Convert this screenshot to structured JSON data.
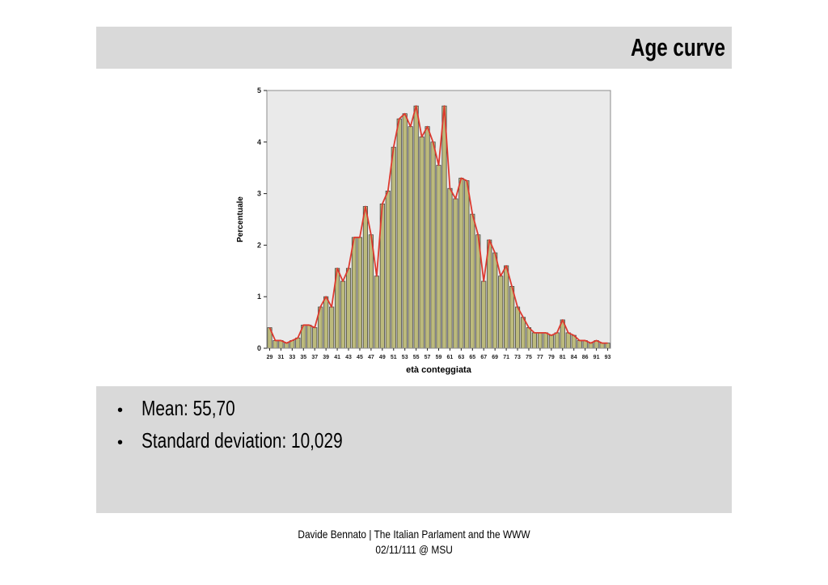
{
  "slide": {
    "title": "Age curve",
    "bullet_char": "•",
    "bullets": [
      "Mean: 55,70",
      "Standard deviation: 10,029"
    ],
    "footer_line1": "Davide Bennato | The Italian Parlament and the WWW",
    "footer_line2": "02/11/111 @ MSU",
    "colors": {
      "panel_bg": "#d9d9d9",
      "text": "#000000"
    }
  },
  "chart_data": {
    "type": "bar",
    "title": "",
    "xlabel": "età conteggiata",
    "ylabel": "Percentuale",
    "ylim": [
      0,
      5
    ],
    "yticks": [
      0,
      1,
      2,
      3,
      4,
      5
    ],
    "grid": false,
    "legend": null,
    "overlay": "line",
    "x_tick_every": 2,
    "x": [
      29,
      30,
      31,
      32,
      33,
      34,
      35,
      36,
      37,
      38,
      39,
      40,
      41,
      42,
      43,
      44,
      45,
      46,
      47,
      48,
      49,
      50,
      51,
      52,
      53,
      54,
      55,
      56,
      57,
      58,
      59,
      60,
      61,
      62,
      63,
      64,
      65,
      66,
      67,
      68,
      69,
      70,
      71,
      72,
      73,
      74,
      75,
      76,
      77,
      78,
      79,
      80,
      81,
      83,
      84,
      85,
      86,
      88,
      91,
      92,
      93
    ],
    "values": [
      0.4,
      0.15,
      0.15,
      0.1,
      0.15,
      0.2,
      0.45,
      0.45,
      0.4,
      0.8,
      1.0,
      0.8,
      1.55,
      1.3,
      1.55,
      2.15,
      2.15,
      2.75,
      2.2,
      1.4,
      2.8,
      3.05,
      3.9,
      4.45,
      4.55,
      4.3,
      4.7,
      4.1,
      4.3,
      4.0,
      3.55,
      4.7,
      3.1,
      2.9,
      3.3,
      3.25,
      2.6,
      2.2,
      1.3,
      2.1,
      1.85,
      1.4,
      1.6,
      1.2,
      0.8,
      0.6,
      0.4,
      0.3,
      0.3,
      0.3,
      0.25,
      0.3,
      0.55,
      0.3,
      0.25,
      0.15,
      0.15,
      0.1,
      0.15,
      0.1,
      0.1
    ],
    "x_tick_labels": [
      "29",
      "31",
      "33",
      "35",
      "37",
      "39",
      "41",
      "43",
      "45",
      "47",
      "49",
      "51",
      "53",
      "55",
      "57",
      "59",
      "61",
      "63",
      "65",
      "67",
      "69",
      "71",
      "73",
      "75",
      "77",
      "79",
      "81",
      "84",
      "86",
      "91",
      "93"
    ],
    "styles": {
      "bar_fill": "#bcba7c",
      "bar_edge": "#3f3f3f",
      "line": "#dd3a2f",
      "plot_bg": "#eaeaea",
      "frame": "#8c8c8c",
      "tick_color": "#222222"
    }
  }
}
